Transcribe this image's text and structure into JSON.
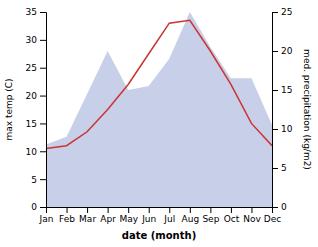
{
  "chart_data": {
    "type": "line",
    "xlabel": "date (month)",
    "ylabel": "max temp (C)",
    "y2label": "med. precipitation (kg/m2)",
    "categories": [
      "Jan",
      "Feb",
      "Mar",
      "Apr",
      "May",
      "Jun",
      "Jul",
      "Aug",
      "Sep",
      "Oct",
      "Nov",
      "Dec"
    ],
    "series": [
      {
        "type": "area",
        "color": "#c8cfe8",
        "axis": "y2",
        "values": [
          8.0,
          9.0,
          14.5,
          20.0,
          15.0,
          15.5,
          19.0,
          25.0,
          20.5,
          16.5,
          16.5,
          10.5
        ]
      },
      {
        "type": "line",
        "color": "#cc3333",
        "values": [
          10.5,
          11.0,
          13.5,
          17.5,
          22.0,
          27.5,
          33.0,
          33.5,
          28.0,
          22.0,
          15.0,
          11.0
        ]
      }
    ],
    "ylim": [
      0,
      35
    ],
    "yticks": [
      0,
      5,
      10,
      15,
      20,
      25,
      30,
      35
    ],
    "y2lim": [
      0,
      25
    ],
    "y2ticks": [
      0,
      5,
      10,
      15,
      20,
      25
    ],
    "grid": false
  }
}
